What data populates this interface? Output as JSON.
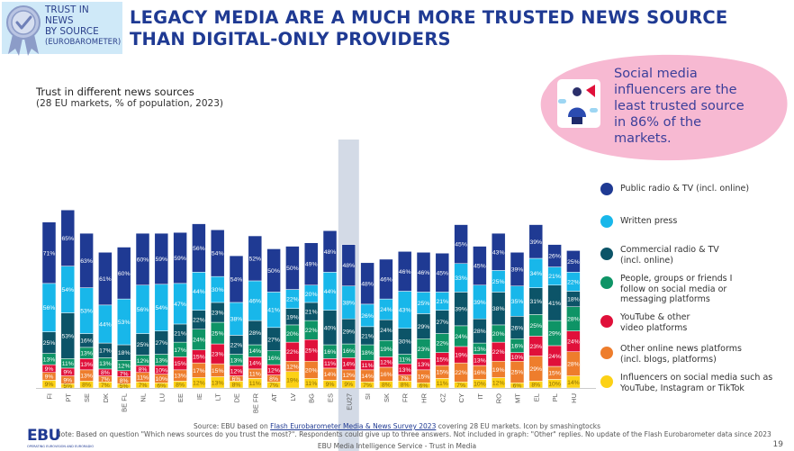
{
  "badge": {
    "lines": [
      "TRUST IN",
      "NEWS",
      "BY SOURCE"
    ],
    "sub": "(EUROBAROMETER)",
    "icon": "award-ribbon-check-icon"
  },
  "title_lines": [
    "LEGACY MEDIA ARE A MUCH MORE TRUSTED NEWS SOURCE",
    "THAN DIGITAL-ONLY PROVIDERS"
  ],
  "callout": {
    "lines": [
      "Social media",
      "influencers are the",
      "least trusted source",
      "in 86% of the",
      "markets."
    ],
    "icon": "influencer-megaphone-icon"
  },
  "colors": {
    "title": "#1f3a93",
    "callout_bg": "#f7b9d2",
    "eu27_highlight": "#d3dae6"
  },
  "chart_data": {
    "type": "bar",
    "stacked": true,
    "title": "Trust in different news sources",
    "subtitle": "(28 EU markets, % of population, 2023)",
    "xlabel": "",
    "ylabel": "",
    "categories": [
      "FI",
      "PT",
      "SE",
      "DK",
      "BE FL",
      "NL",
      "LU",
      "EE",
      "IE",
      "LT",
      "DE",
      "BE FR",
      "AT",
      "LV",
      "BG",
      "ES",
      "EU27",
      "SI",
      "SK",
      "FR",
      "HR",
      "CZ",
      "CY",
      "IT",
      "RO",
      "MT",
      "EL",
      "PL",
      "HU"
    ],
    "highlight_category": "EU27",
    "series": [
      {
        "name": "Influencers on social media such as YouTube, Instagram or TikTok",
        "color": "#fcd116",
        "label_color": "#8a6d00",
        "values": [
          9,
          5,
          8,
          7,
          5,
          7,
          6,
          8,
          12,
          13,
          8,
          11,
          7,
          19,
          11,
          9,
          9,
          7,
          8,
          8,
          6,
          11,
          7,
          10,
          12,
          6,
          8,
          10,
          14
        ]
      },
      {
        "name": "Other online news platforms (incl. blogs, platforms)",
        "color": "#ee7d2c",
        "label_color": "#ffffff",
        "values": [
          9,
          9,
          13,
          7,
          8,
          11,
          10,
          13,
          17,
          15,
          6,
          11,
          8,
          12,
          20,
          14,
          12,
          14,
          16,
          7,
          15,
          15,
          22,
          16,
          19,
          25,
          29,
          15,
          28
        ]
      },
      {
        "name": "YouTube & other video platforms",
        "color": "#e0103a",
        "label_color": "#ffffff",
        "values": [
          9,
          9,
          13,
          8,
          7,
          8,
          10,
          15,
          15,
          23,
          12,
          14,
          12,
          22,
          25,
          11,
          14,
          11,
          12,
          13,
          13,
          15,
          19,
          13,
          22,
          10,
          23,
          24,
          24
        ]
      },
      {
        "name": "People, groups or friends I follow on social media or messaging platforms",
        "color": "#0e9466",
        "label_color": "#ffffff",
        "values": [
          13,
          11,
          13,
          13,
          12,
          12,
          13,
          17,
          24,
          25,
          13,
          14,
          16,
          20,
          22,
          16,
          16,
          18,
          19,
          11,
          23,
          22,
          24,
          13,
          20,
          16,
          25,
          29,
          28
        ]
      },
      {
        "name": "Commercial radio & TV (incl. online)",
        "color": "#0c5468",
        "label_color": "#ffffff",
        "values": [
          25,
          53,
          16,
          17,
          18,
          25,
          27,
          21,
          22,
          23,
          22,
          28,
          27,
          19,
          21,
          40,
          29,
          21,
          24,
          30,
          29,
          27,
          39,
          28,
          38,
          26,
          31,
          41,
          18
        ]
      },
      {
        "name": "Written press",
        "color": "#18b7ea",
        "label_color": "#ffffff",
        "values": [
          56,
          54,
          53,
          44,
          53,
          56,
          54,
          47,
          44,
          30,
          38,
          46,
          41,
          22,
          20,
          44,
          38,
          26,
          24,
          43,
          25,
          21,
          33,
          39,
          25,
          35,
          34,
          21,
          22
        ]
      },
      {
        "name": "Public radio & TV (incl. online)",
        "color": "#1f3a93",
        "label_color": "#ffffff",
        "values": [
          71,
          65,
          63,
          61,
          60,
          60,
          59,
          59,
          56,
          54,
          54,
          52,
          50,
          50,
          49,
          48,
          48,
          48,
          46,
          46,
          46,
          45,
          45,
          45,
          43,
          39,
          39,
          26,
          25
        ]
      }
    ],
    "legend": {
      "placement": "right",
      "order": [
        6,
        5,
        4,
        3,
        2,
        1,
        0
      ],
      "labels": [
        "Public radio & TV (incl. online)",
        "Written press",
        "Commercial radio & TV\n(incl. online)",
        "People, groups or friends I\nfollow on social media or\nmessaging platforms",
        "YouTube & other\nvideo platforms",
        "Other online news platforms\n(incl. blogs, platforms)",
        "Influencers on social media such as\nYouTube, Instagram or TikTok"
      ]
    },
    "value_suffix": "%",
    "grid": false
  },
  "footer": {
    "source_prefix": "Source: EBU based on ",
    "source_link": "Flash Eurobarometer Media & News Survey 2023",
    "source_suffix": " covering 28 EU markets. Icon by smashingtocks",
    "note": "Note: Based on question \"Which news sources do you trust the most?\". Respondents could give up to three answers. Not included in graph: \"Other\" replies. No update of the Flash Eurobarometer data since 2023",
    "center": "EBU Media Intelligence Service - Trust in Media",
    "page": "19",
    "logo": "EBU",
    "logo_sub": "OPERATING EUROVISION AND EURORADIO"
  }
}
